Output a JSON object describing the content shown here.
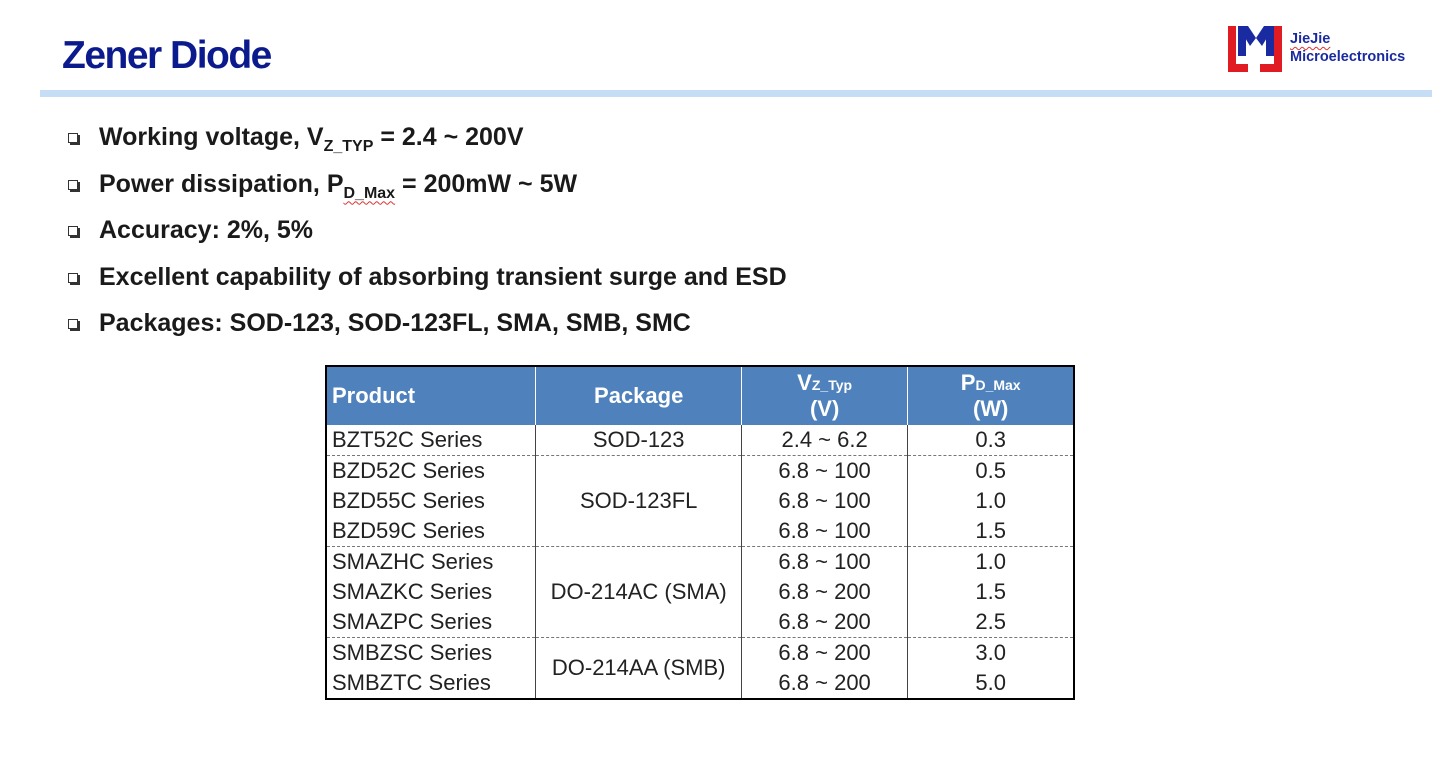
{
  "title": "Zener Diode",
  "logo": {
    "line1": "JieJie",
    "line2": "Microelectronics",
    "colors": {
      "blue": "#1a2aa0",
      "red": "#e11b22"
    }
  },
  "bullets": {
    "b1": {
      "pre": "Working voltage, V",
      "sub": "Z_TYP",
      "post": " = 2.4 ~ 200V"
    },
    "b2": {
      "pre": "Power dissipation, P",
      "sub": "D_Max",
      "post": " = 200mW ~ 5W"
    },
    "b3": {
      "text": "Accuracy: 2%, 5%"
    },
    "b4": {
      "text": "Excellent capability of absorbing transient surge and ESD"
    },
    "b5": {
      "text": "Packages: SOD-123, SOD-123FL, SMA, SMB, SMC"
    }
  },
  "table": {
    "headers": {
      "product": "Product",
      "package": "Package",
      "vz": {
        "main": "V",
        "sub": "Z_Typ",
        "unit": "(V)"
      },
      "pd": {
        "main": "P",
        "sub": "D_Max",
        "unit": "(W)"
      }
    },
    "groups": [
      {
        "package": "SOD-123",
        "rows": [
          {
            "product": "BZT52C Series",
            "vz": "2.4 ~ 6.2",
            "pd": "0.3"
          }
        ]
      },
      {
        "package": "SOD-123FL",
        "rows": [
          {
            "product": "BZD52C Series",
            "vz": "6.8 ~ 100",
            "pd": "0.5"
          },
          {
            "product": "BZD55C Series",
            "vz": "6.8 ~ 100",
            "pd": "1.0"
          },
          {
            "product": "BZD59C Series",
            "vz": "6.8 ~ 100",
            "pd": "1.5"
          }
        ]
      },
      {
        "package": "DO-214AC (SMA)",
        "rows": [
          {
            "product": "SMAZHC Series",
            "vz": "6.8 ~ 100",
            "pd": "1.0"
          },
          {
            "product": "SMAZKC Series",
            "vz": "6.8 ~ 200",
            "pd": "1.5"
          },
          {
            "product": "SMAZPC Series",
            "vz": "6.8 ~ 200",
            "pd": "2.5"
          }
        ]
      },
      {
        "package": "DO-214AA (SMB)",
        "rows": [
          {
            "product": "SMBZSC Series",
            "vz": "6.8 ~ 200",
            "pd": "3.0"
          },
          {
            "product": "SMBZTC Series",
            "vz": "6.8 ~ 200",
            "pd": "5.0"
          }
        ]
      }
    ]
  }
}
